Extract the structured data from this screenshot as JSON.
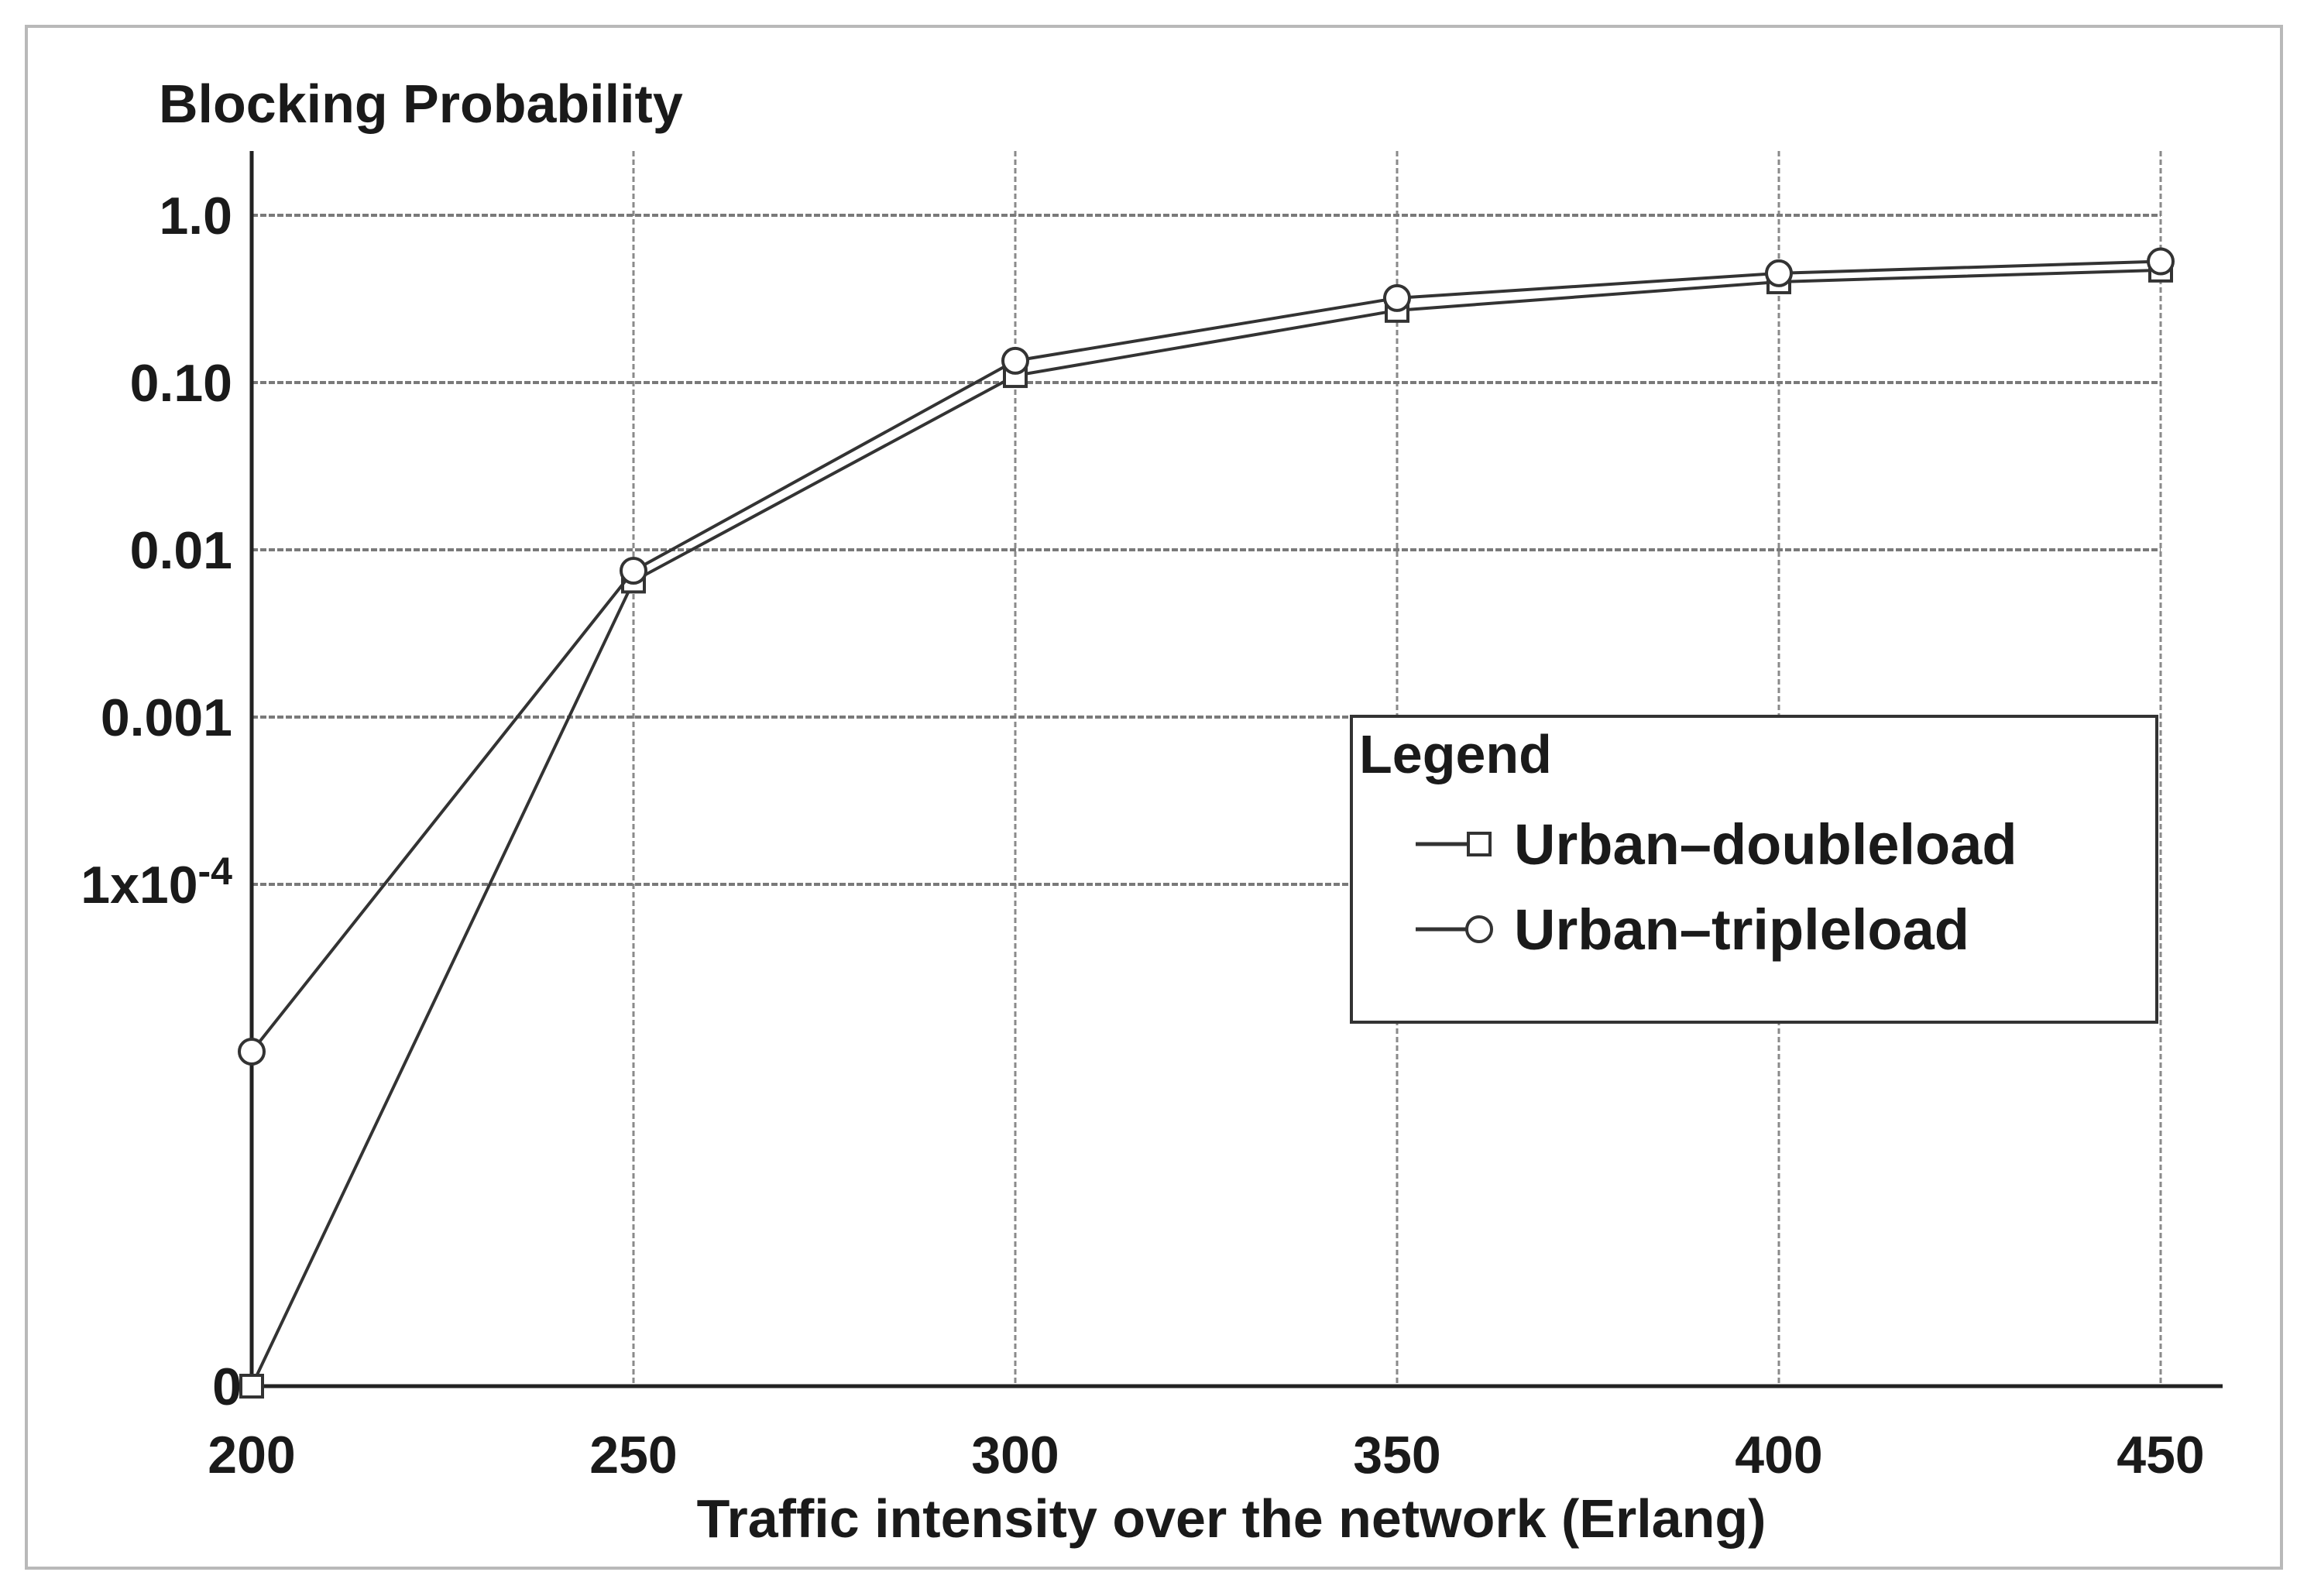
{
  "chart_data": {
    "type": "line",
    "title": "",
    "ylabel": "Blocking Probability",
    "xlabel": "Traffic intensity over the network (Erlang)",
    "x": [
      200,
      250,
      300,
      350,
      400,
      450
    ],
    "x_ticks": [
      "200",
      "250",
      "300",
      "350",
      "400",
      "450"
    ],
    "xlim": [
      200,
      450
    ],
    "y_scale": "log",
    "y_ticks": [
      {
        "value": 1.0,
        "label": "1.0"
      },
      {
        "value": 0.1,
        "label": "0.10"
      },
      {
        "value": 0.01,
        "label": "0.01"
      },
      {
        "value": 0.001,
        "label": "0.001"
      },
      {
        "value": 0.0001,
        "label": "1x10",
        "superscript": "-4",
        "color": "#5a3a00"
      },
      {
        "value": 0,
        "label": "0"
      }
    ],
    "ylim": [
      0,
      1.0
    ],
    "grid": true,
    "legend": {
      "title": "Legend",
      "placement": "right-middle"
    },
    "series": [
      {
        "name": "Urban–doubleload",
        "marker": "square",
        "values": [
          0,
          0.0065,
          0.11,
          0.27,
          0.4,
          0.47
        ]
      },
      {
        "name": "Urban–tripleload",
        "marker": "circle",
        "values": [
          1e-05,
          0.0075,
          0.135,
          0.32,
          0.45,
          0.53
        ]
      }
    ]
  }
}
